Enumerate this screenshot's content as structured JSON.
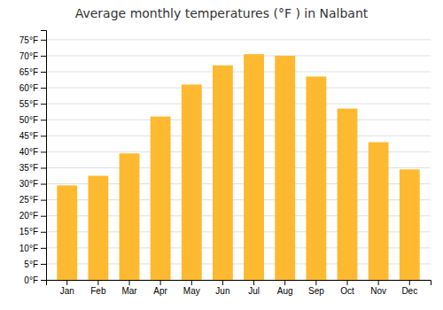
{
  "chart_data": {
    "type": "bar",
    "title": "Average monthly temperatures (°F ) in Nalbant",
    "categories": [
      "Jan",
      "Feb",
      "Mar",
      "Apr",
      "May",
      "Jun",
      "Jul",
      "Aug",
      "Sep",
      "Oct",
      "Nov",
      "Dec"
    ],
    "values": [
      29.5,
      32.5,
      39.5,
      51.0,
      61.0,
      67.0,
      70.5,
      70.0,
      63.5,
      53.5,
      43.0,
      34.5
    ],
    "color": "#FDB930",
    "ylim": [
      0,
      78
    ],
    "yticks": [
      {
        "value": 0,
        "label": "0°F"
      },
      {
        "value": 5,
        "label": "5°F"
      },
      {
        "value": 10,
        "label": "10°F"
      },
      {
        "value": 15,
        "label": "15°F"
      },
      {
        "value": 20,
        "label": "20°F"
      },
      {
        "value": 25,
        "label": "25°F"
      },
      {
        "value": 30,
        "label": "30°F"
      },
      {
        "value": 35,
        "label": "35°F"
      },
      {
        "value": 40,
        "label": "40°F"
      },
      {
        "value": 45,
        "label": "45°F"
      },
      {
        "value": 50,
        "label": "50°F"
      },
      {
        "value": 55,
        "label": "55°F"
      },
      {
        "value": 60,
        "label": "60°F"
      },
      {
        "value": 65,
        "label": "65°F"
      },
      {
        "value": 70,
        "label": "70°F"
      },
      {
        "value": 75,
        "label": "75°F"
      }
    ],
    "grid": true
  }
}
